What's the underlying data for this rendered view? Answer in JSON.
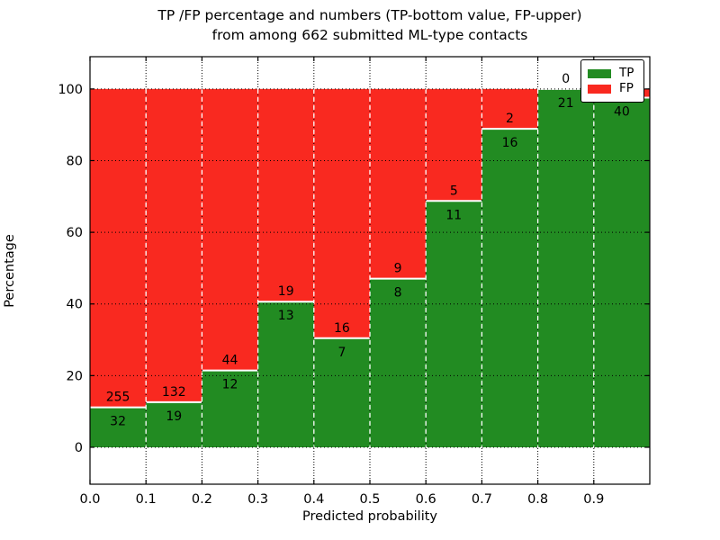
{
  "figure": {
    "title_line1": "TP /FP percentage and numbers (TP-bottom value, FP-upper)",
    "title_line2": "from among 662 submitted ML-type contacts"
  },
  "chart_data": {
    "type": "bar",
    "subtype": "stacked_percentage",
    "title": "TP /FP percentage and numbers (TP-bottom value, FP-upper)\nfrom among 662 submitted ML-type contacts",
    "xlabel": "Predicted probability",
    "ylabel": "Percentage",
    "total_submitted": 662,
    "xlim": [
      0,
      1
    ],
    "ylim": [
      -10.3,
      109.0
    ],
    "x_tick_labels": [
      "0.0",
      "0.1",
      "0.2",
      "0.3",
      "0.4",
      "0.5",
      "0.6",
      "0.7",
      "0.8",
      "0.9"
    ],
    "y_tick_values": [
      0,
      20,
      40,
      60,
      80,
      100
    ],
    "y_tick_labels": [
      "0",
      "20",
      "40",
      "60",
      "80",
      "100"
    ],
    "grid": true,
    "bin_width": 0.1,
    "legend": {
      "position": "upper right",
      "entries": [
        {
          "label": "TP",
          "color": "#228b22"
        },
        {
          "label": "FP",
          "color": "#f92920"
        }
      ]
    },
    "bins": [
      {
        "range": [
          0.0,
          0.1
        ],
        "tp": 32,
        "fp": 255,
        "tp_label": "32",
        "fp_label": "255",
        "fp_label_visible": true
      },
      {
        "range": [
          0.1,
          0.2
        ],
        "tp": 19,
        "fp": 132,
        "tp_label": "19",
        "fp_label": "132",
        "fp_label_visible": true
      },
      {
        "range": [
          0.2,
          0.3
        ],
        "tp": 12,
        "fp": 44,
        "tp_label": "12",
        "fp_label": "44",
        "fp_label_visible": true
      },
      {
        "range": [
          0.3,
          0.4
        ],
        "tp": 13,
        "fp": 19,
        "tp_label": "13",
        "fp_label": "19",
        "fp_label_visible": true
      },
      {
        "range": [
          0.4,
          0.5
        ],
        "tp": 7,
        "fp": 16,
        "tp_label": "7",
        "fp_label": "16",
        "fp_label_visible": true
      },
      {
        "range": [
          0.5,
          0.6
        ],
        "tp": 8,
        "fp": 9,
        "tp_label": "8",
        "fp_label": "9",
        "fp_label_visible": true
      },
      {
        "range": [
          0.6,
          0.7
        ],
        "tp": 11,
        "fp": 5,
        "tp_label": "11",
        "fp_label": "5",
        "fp_label_visible": true
      },
      {
        "range": [
          0.7,
          0.8
        ],
        "tp": 16,
        "fp": 2,
        "tp_label": "16",
        "fp_label": "2",
        "fp_label_visible": true
      },
      {
        "range": [
          0.8,
          0.9
        ],
        "tp": 21,
        "fp": 0,
        "tp_label": "21",
        "fp_label": "0",
        "fp_label_visible": true
      },
      {
        "range": [
          0.9,
          1.0
        ],
        "tp": 40,
        "fp": 1,
        "tp_label": "40",
        "fp_label": "1",
        "fp_label_visible": false
      }
    ],
    "colors": {
      "tp_bar": "#228b22",
      "fp_bar": "#f92920",
      "segment_separator": "#ffffff",
      "grid_line": "#000000",
      "bar_edge_dashed": "#ffffff",
      "spine": "#000000",
      "text": "#000000",
      "background": "#ffffff"
    }
  }
}
